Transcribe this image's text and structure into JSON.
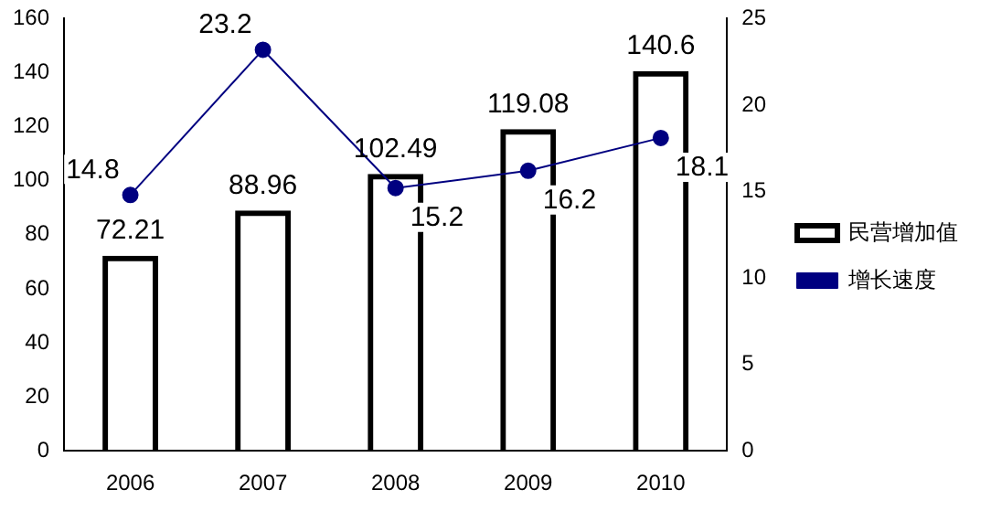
{
  "chart_data": {
    "type": "bar",
    "categories": [
      "2006",
      "2007",
      "2008",
      "2009",
      "2010"
    ],
    "series": [
      {
        "name": "民营增加值",
        "color": "#000000",
        "values": [
          72.21,
          88.96,
          102.49,
          119.08,
          140.6
        ]
      },
      {
        "name": "增长速度",
        "type": "line",
        "axis": "y2",
        "color": "#000080",
        "values": [
          14.8,
          23.2,
          15.2,
          16.2,
          18.1
        ]
      }
    ],
    "ylim": [
      0,
      160
    ],
    "yticks": [
      0,
      20,
      40,
      60,
      80,
      100,
      120,
      140,
      160
    ],
    "y2lim": [
      0,
      25
    ],
    "y2ticks": [
      0,
      5,
      10,
      15,
      20,
      25
    ],
    "data_labels": true,
    "legend": "right",
    "grid": false,
    "marker": "circle",
    "line_style": "solid"
  }
}
